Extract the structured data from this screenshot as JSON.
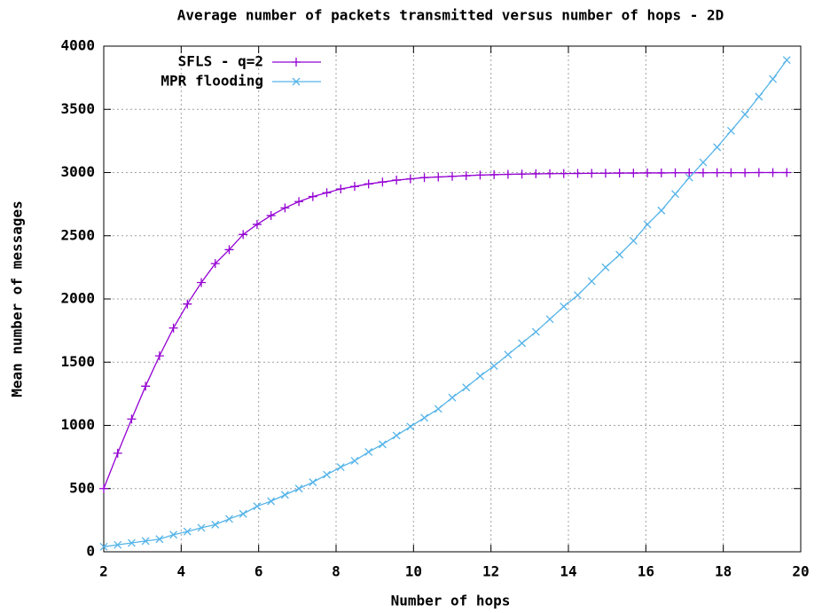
{
  "chart_data": {
    "type": "line",
    "title": "Average number of packets transmitted versus number of hops - 2D",
    "xlabel": "Number of hops",
    "ylabel": "Mean number of messages",
    "x": [
      2,
      2.36,
      2.72,
      3.08,
      3.44,
      3.8,
      4.16,
      4.52,
      4.88,
      5.24,
      5.6,
      5.96,
      6.32,
      6.68,
      7.04,
      7.4,
      7.76,
      8.12,
      8.48,
      8.84,
      9.2,
      9.56,
      9.92,
      10.28,
      10.64,
      11,
      11.36,
      11.72,
      12.08,
      12.44,
      12.8,
      13.16,
      13.52,
      13.88,
      14.24,
      14.6,
      14.96,
      15.32,
      15.68,
      16.04,
      16.4,
      16.76,
      17.12,
      17.48,
      17.84,
      18.2,
      18.56,
      18.92,
      19.28,
      19.64
    ],
    "series": [
      {
        "name": "SFLS - q=2",
        "color": "#9400d3",
        "marker": "plus",
        "values": [
          500,
          780,
          1050,
          1310,
          1550,
          1770,
          1960,
          2130,
          2280,
          2390,
          2510,
          2590,
          2660,
          2720,
          2770,
          2810,
          2840,
          2870,
          2890,
          2910,
          2925,
          2940,
          2950,
          2960,
          2965,
          2970,
          2975,
          2980,
          2983,
          2986,
          2988,
          2990,
          2991,
          2992,
          2993,
          2994,
          2995,
          2996,
          2996,
          2997,
          2997,
          2998,
          2998,
          2998,
          2999,
          2999,
          2999,
          3000,
          3000,
          3000
        ]
      },
      {
        "name": "MPR flooding",
        "color": "#56b4e9",
        "marker": "cross",
        "values": [
          40,
          55,
          70,
          85,
          100,
          135,
          160,
          190,
          215,
          260,
          300,
          360,
          400,
          450,
          500,
          550,
          610,
          670,
          720,
          790,
          850,
          920,
          990,
          1060,
          1130,
          1220,
          1300,
          1390,
          1470,
          1560,
          1650,
          1740,
          1840,
          1940,
          2030,
          2140,
          2250,
          2350,
          2460,
          2590,
          2700,
          2830,
          2960,
          3080,
          3200,
          3330,
          3460,
          3600,
          3740,
          3890
        ]
      }
    ],
    "xlim": [
      2,
      20
    ],
    "xticks": [
      2,
      4,
      6,
      8,
      10,
      12,
      14,
      16,
      18,
      20
    ],
    "ylim": [
      0,
      4000
    ],
    "yticks": [
      0,
      500,
      1000,
      1500,
      2000,
      2500,
      3000,
      3500,
      4000
    ],
    "grid": true,
    "legend": "top-left"
  }
}
